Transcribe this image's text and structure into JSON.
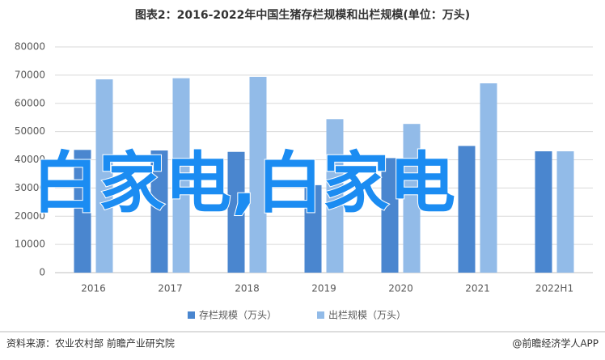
{
  "chart_data": {
    "type": "bar",
    "title": "图表2：2016-2022年中国生猪存栏规模和出栏规模(单位：万头)",
    "categories": [
      "2016",
      "2017",
      "2018",
      "2019",
      "2020",
      "2021",
      "2022H1"
    ],
    "series": [
      {
        "name": "存栏规模（万头）",
        "color": "#4a86cf",
        "values": [
          43500,
          43300,
          42800,
          31000,
          40600,
          44900,
          43000
        ]
      },
      {
        "name": "出栏规模（万头）",
        "color": "#92bbe8",
        "values": [
          68500,
          68900,
          69400,
          54400,
          52700,
          67100,
          43000
        ]
      }
    ],
    "ylim": [
      0,
      80000
    ],
    "yticks": [
      0,
      10000,
      20000,
      30000,
      40000,
      50000,
      60000,
      70000,
      80000
    ],
    "grid": true,
    "legend": "bottom",
    "overlay_text": "白家电,白家电",
    "source": "资料来源：农业农村部 前瞻产业研究院",
    "credit": "@前瞻经济学人APP"
  }
}
